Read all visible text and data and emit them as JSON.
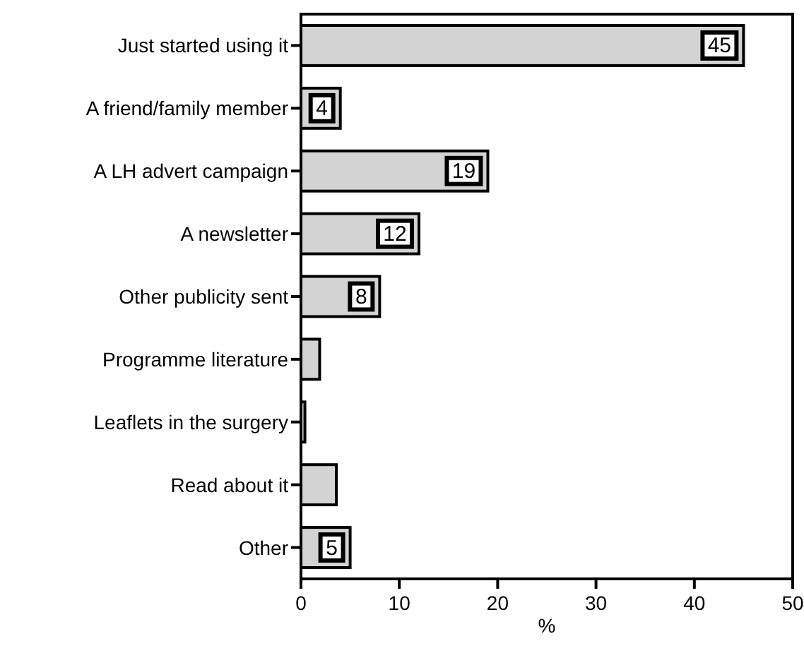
{
  "chart_data": {
    "type": "bar",
    "orientation": "horizontal",
    "xlabel": "%",
    "categories": [
      "Just started using it",
      "A friend/family member",
      "A LH advert campaign",
      "A newsletter",
      "Other publicity sent",
      "Programme literature",
      "Leaflets in the surgery",
      "Read about it",
      "Other"
    ],
    "values": [
      45,
      4,
      19,
      12,
      8,
      1.9,
      0.4,
      3.6,
      5
    ],
    "value_labels": [
      "45",
      "4",
      "19",
      "12",
      "8",
      null,
      null,
      null,
      "5"
    ],
    "color": "#d3d3d3",
    "xlim": [
      0,
      50
    ],
    "xticks": [
      0,
      10,
      20,
      30,
      40,
      50
    ],
    "grid": false
  }
}
